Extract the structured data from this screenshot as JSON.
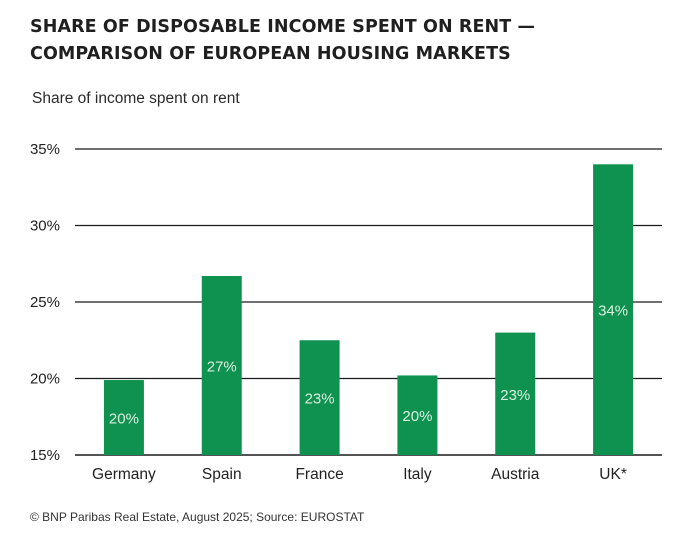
{
  "chart_data": {
    "type": "bar",
    "title": "SHARE OF DISPOSABLE INCOME SPENT ON RENT — COMPARISON OF EUROPEAN HOUSING MARKETS",
    "ylabel": "Share of income spent on rent",
    "xlabel": "",
    "categories": [
      "Germany",
      "Spain",
      "France",
      "Italy",
      "Austria",
      "UK*"
    ],
    "values": [
      19.9,
      26.7,
      22.5,
      20.2,
      23.0,
      34.0
    ],
    "data_labels": [
      "20%",
      "27%",
      "23%",
      "20%",
      "23%",
      "34%"
    ],
    "ylim": [
      15,
      35
    ],
    "yticks": [
      15,
      20,
      25,
      30,
      35
    ],
    "ytick_labels": [
      "15%",
      "20%",
      "25%",
      "30%",
      "35%"
    ],
    "grid": "horizontal",
    "bar_color": "#0f9150",
    "label_color": "#d9f0e0"
  },
  "source": "© BNP Paribas Real Estate, August 2025; Source: EUROSTAT"
}
